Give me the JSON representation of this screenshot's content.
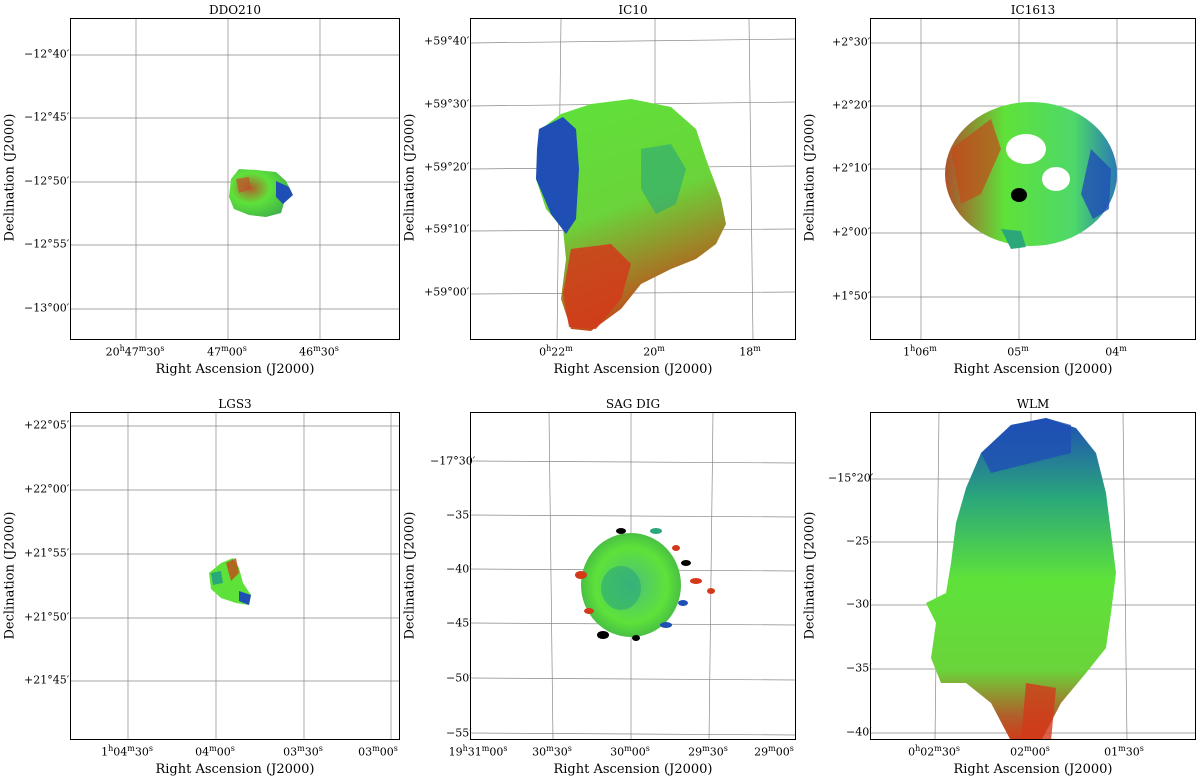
{
  "xaxis_label": "Right Ascension (J2000)",
  "yaxis_label": "Declination (J2000)",
  "colors": {
    "red": "#d23a1a",
    "green": "#5ee23a",
    "blue": "#1f4fb5",
    "teal": "#2aa87a",
    "black": "#000000"
  },
  "panels": [
    {
      "title": "DDO210",
      "xticks": [
        {
          "main": "20",
          "sup1": "h",
          "p2": "47",
          "sup2": "m",
          "p3": "30",
          "sup3": "s"
        },
        {
          "main": "47",
          "sup1": "m",
          "p2": "00",
          "sup2": "s"
        },
        {
          "main": "46",
          "sup1": "m",
          "p2": "30",
          "sup2": "s"
        }
      ],
      "yticks": [
        "−12°40′",
        "−12°45′",
        "−12°50′",
        "−12°55′",
        "−13°00′"
      ]
    },
    {
      "title": "IC10",
      "xticks": [
        {
          "main": "0",
          "sup1": "h",
          "p2": "22",
          "sup2": "m"
        },
        {
          "main": "20",
          "sup1": "m"
        },
        {
          "main": "18",
          "sup1": "m"
        }
      ],
      "yticks": [
        "+59°40′",
        "+59°30′",
        "+59°20′",
        "+59°10′",
        "+59°00′"
      ]
    },
    {
      "title": "IC1613",
      "xticks": [
        {
          "main": "1",
          "sup1": "h",
          "p2": "06",
          "sup2": "m"
        },
        {
          "main": "05",
          "sup1": "m"
        },
        {
          "main": "04",
          "sup1": "m"
        }
      ],
      "yticks": [
        "+2°30′",
        "+2°20′",
        "+2°10′",
        "+2°00′",
        "+1°50′"
      ]
    },
    {
      "title": "LGS3",
      "xticks": [
        {
          "main": "1",
          "sup1": "h",
          "p2": "04",
          "sup2": "m",
          "p3": "30",
          "sup3": "s"
        },
        {
          "main": "04",
          "sup1": "m",
          "p2": "00",
          "sup2": "s"
        },
        {
          "main": "03",
          "sup1": "m",
          "p2": "30",
          "sup2": "s"
        },
        {
          "main": "03",
          "sup1": "m",
          "p2": "00",
          "sup2": "s"
        }
      ],
      "yticks": [
        "+22°05′",
        "+22°00′",
        "+21°55′",
        "+21°50′",
        "+21°45′"
      ]
    },
    {
      "title": "SAG DIG",
      "xticks": [
        {
          "main": "19",
          "sup1": "h",
          "p2": "31",
          "sup2": "m",
          "p3": "00",
          "sup3": "s"
        },
        {
          "main": "30",
          "sup1": "m",
          "p2": "30",
          "sup2": "s"
        },
        {
          "main": "30",
          "sup1": "m",
          "p2": "00",
          "sup2": "s"
        },
        {
          "main": "29",
          "sup1": "m",
          "p2": "30",
          "sup2": "s"
        },
        {
          "main": "29",
          "sup1": "m",
          "p2": "00",
          "sup2": "s"
        }
      ],
      "yticks": [
        "−17°30′",
        "−35′",
        "−40′",
        "−45′",
        "−50′",
        "−55′"
      ]
    },
    {
      "title": "WLM",
      "xticks": [
        {
          "main": "0",
          "sup1": "h",
          "p2": "02",
          "sup2": "m",
          "p3": "30",
          "sup3": "s"
        },
        {
          "main": "02",
          "sup1": "m",
          "p2": "00",
          "sup2": "s"
        },
        {
          "main": "01",
          "sup1": "m",
          "p2": "30",
          "sup2": "s"
        }
      ],
      "yticks": [
        "−15°20′",
        "−25′",
        "−30′",
        "−35′",
        "−40′"
      ]
    }
  ]
}
